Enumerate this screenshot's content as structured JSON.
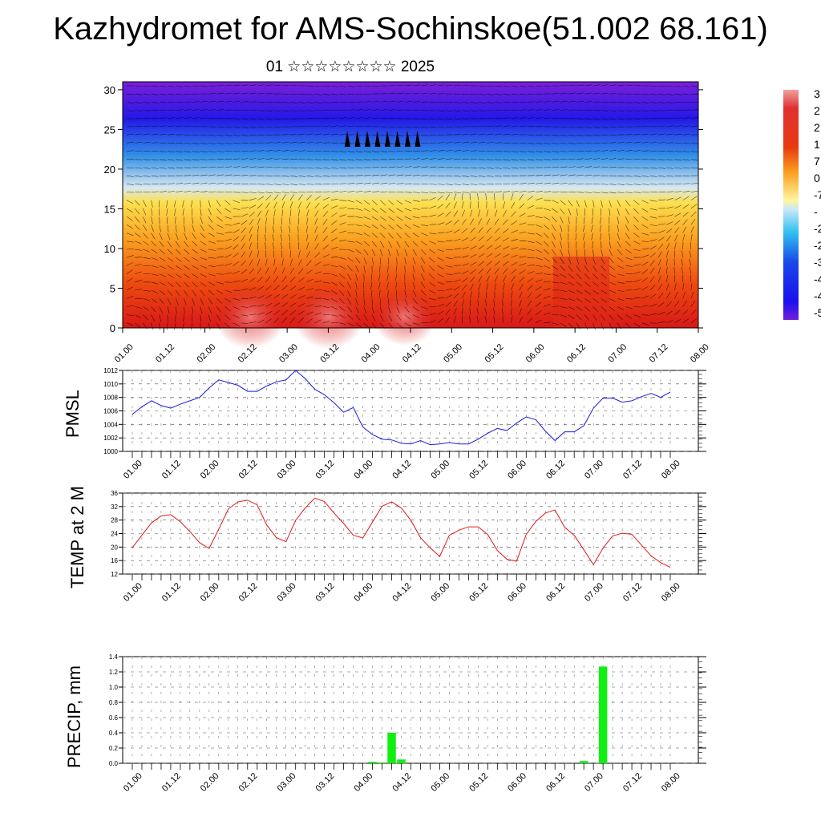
{
  "header": {
    "title": "Kazhydromet for AMS-Sochinskoe(51.002 68.161)",
    "subtitle": "01 ☆☆☆☆☆☆☆☆ 2025"
  },
  "time_ticks": [
    "01.00",
    "01.12",
    "02.00",
    "02.12",
    "03.00",
    "03.12",
    "04.00",
    "04.12",
    "05.00",
    "05.12",
    "06.00",
    "06.12",
    "07.00",
    "07.12",
    "08.00"
  ],
  "colorbar": {
    "labels": [
      "3",
      "2",
      "2",
      "1·",
      "7",
      "0",
      "-7",
      "-",
      "-2",
      "-2",
      "-3",
      "-4",
      "-4",
      "-5"
    ],
    "colors": [
      "#f0a0a0",
      "#e03030",
      "#d81818",
      "#e83a10",
      "#f56a10",
      "#fca020",
      "#fed040",
      "#fff6a0",
      "#c8e8f8",
      "#30c0f0",
      "#1a90f0",
      "#1848e8",
      "#1a10f0",
      "#7020d8"
    ]
  },
  "chart_data": [
    {
      "type": "heatmap",
      "name": "temperature-wind-cross-section",
      "ylim": [
        0,
        31
      ],
      "yticks": [
        0,
        5,
        10,
        15,
        20,
        25,
        30
      ],
      "x": [
        "01.00",
        "01.12",
        "02.00",
        "02.12",
        "03.00",
        "03.12",
        "04.00",
        "04.12",
        "05.00",
        "05.12",
        "06.00",
        "06.12",
        "07.00",
        "07.12",
        "08.00"
      ],
      "colors": {
        "30": "#7a20d8",
        "25": "#2418e8",
        "20": "#3090e8",
        "17": "#d8e8f0",
        "15": "#fce050",
        "10": "#fba020",
        "5": "#ee4a10",
        "0": "#d81818"
      },
      "wind_vectors": true
    },
    {
      "type": "line",
      "name": "pmsl",
      "ylabel": "PMSL",
      "ylim": [
        1000,
        1012
      ],
      "yticks": [
        1000,
        1002,
        1004,
        1006,
        1008,
        1010,
        1012
      ],
      "color": "#1a1ae0",
      "x_index": [
        0,
        1,
        2,
        3,
        4,
        5,
        6,
        7,
        8,
        9,
        10,
        11,
        12,
        13,
        14,
        15,
        16,
        17,
        18,
        19,
        20,
        21,
        22,
        23,
        24,
        25,
        26,
        27,
        28,
        29,
        30,
        31,
        32,
        33,
        34,
        35,
        36,
        37,
        38,
        39,
        40,
        41,
        42,
        43,
        44,
        45,
        46,
        47,
        48,
        49,
        50,
        51,
        52,
        53,
        54,
        55,
        56
      ],
      "values": [
        1005.5,
        1006.6,
        1007.5,
        1006.8,
        1006.4,
        1007.0,
        1007.5,
        1008.0,
        1009.4,
        1010.6,
        1010.2,
        1009.8,
        1008.9,
        1008.9,
        1009.7,
        1010.3,
        1010.6,
        1012.0,
        1010.8,
        1009.2,
        1008.4,
        1007.2,
        1005.8,
        1006.5,
        1003.6,
        1002.5,
        1001.8,
        1001.7,
        1001.2,
        1001.1,
        1001.6,
        1001.0,
        1001.1,
        1001.3,
        1001.1,
        1001.1,
        1001.8,
        1002.7,
        1003.4,
        1003.1,
        1004.2,
        1005.1,
        1004.7,
        1003.0,
        1001.6,
        1002.9,
        1002.9,
        1003.8,
        1006.4,
        1007.9,
        1007.9,
        1007.3,
        1007.5,
        1008.1,
        1008.6,
        1008.0,
        1008.8
      ]
    },
    {
      "type": "line",
      "name": "temp-2m",
      "ylabel": "TEMP at 2 M",
      "ylim": [
        12,
        36
      ],
      "yticks": [
        12,
        16,
        20,
        24,
        28,
        32,
        36
      ],
      "color": "#e01818",
      "x_index": [
        0,
        1,
        2,
        3,
        4,
        5,
        6,
        7,
        8,
        9,
        10,
        11,
        12,
        13,
        14,
        15,
        16,
        17,
        18,
        19,
        20,
        21,
        22,
        23,
        24,
        25,
        26,
        27,
        28,
        29,
        30,
        31,
        32,
        33,
        34,
        35,
        36,
        37,
        38,
        39,
        40,
        41,
        42,
        43,
        44,
        45,
        46,
        47,
        48,
        49,
        50,
        51,
        52,
        53,
        54,
        55,
        56
      ],
      "values": [
        19.8,
        23.5,
        27.2,
        29.2,
        29.6,
        27.5,
        24.6,
        21.3,
        19.6,
        25.3,
        31.3,
        33.4,
        33.9,
        32.5,
        26.5,
        22.8,
        21.6,
        27.9,
        31.6,
        34.5,
        33.5,
        30.1,
        27.0,
        23.5,
        22.7,
        27.4,
        32.1,
        33.4,
        31.6,
        27.9,
        22.8,
        19.8,
        17.2,
        23.5,
        25.0,
        26.0,
        26.0,
        23.7,
        19.0,
        16.4,
        15.8,
        23.7,
        27.6,
        30.1,
        31.0,
        25.9,
        23.5,
        19.2,
        14.8,
        19.7,
        23.3,
        24.1,
        23.8,
        20.6,
        17.4,
        15.4,
        14.0
      ]
    },
    {
      "type": "bar",
      "name": "precip",
      "ylabel": "PRECIP, mm",
      "ylim": [
        0,
        1.4
      ],
      "yticks": [
        "0.0",
        "0.2",
        "0.4",
        "0.6",
        "0.8",
        "1.0",
        "1.2",
        "1.4"
      ],
      "color": "#10f010",
      "x_index": [
        25,
        26,
        27,
        28,
        47,
        48,
        49,
        50
      ],
      "values": [
        0.02,
        0.01,
        0.4,
        0.05,
        0.03,
        0.0,
        1.27,
        0.0
      ]
    }
  ]
}
